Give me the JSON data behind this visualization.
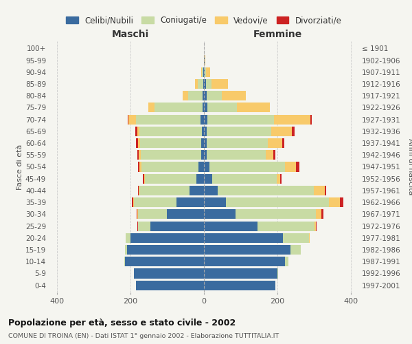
{
  "age_groups": [
    "0-4",
    "5-9",
    "10-14",
    "15-19",
    "20-24",
    "25-29",
    "30-34",
    "35-39",
    "40-44",
    "45-49",
    "50-54",
    "55-59",
    "60-64",
    "65-69",
    "70-74",
    "75-79",
    "80-84",
    "85-89",
    "90-94",
    "95-99",
    "100+"
  ],
  "birth_years": [
    "1997-2001",
    "1992-1996",
    "1987-1991",
    "1982-1986",
    "1977-1981",
    "1972-1976",
    "1967-1971",
    "1962-1966",
    "1957-1961",
    "1952-1956",
    "1947-1951",
    "1942-1946",
    "1937-1941",
    "1932-1936",
    "1927-1931",
    "1922-1926",
    "1917-1921",
    "1912-1916",
    "1907-1911",
    "1902-1906",
    "≤ 1901"
  ],
  "male": {
    "celibe": [
      185,
      190,
      215,
      210,
      200,
      145,
      100,
      75,
      40,
      20,
      15,
      7,
      8,
      6,
      10,
      4,
      3,
      2,
      1,
      0,
      0
    ],
    "coniugato": [
      0,
      0,
      2,
      5,
      12,
      35,
      80,
      115,
      135,
      140,
      155,
      165,
      165,
      170,
      175,
      130,
      40,
      15,
      4,
      0,
      0
    ],
    "vedovo": [
      0,
      0,
      0,
      0,
      0,
      0,
      1,
      2,
      2,
      3,
      5,
      5,
      6,
      6,
      20,
      18,
      15,
      8,
      2,
      0,
      0
    ],
    "divorziato": [
      0,
      0,
      0,
      0,
      0,
      1,
      2,
      4,
      3,
      4,
      5,
      5,
      5,
      5,
      2,
      0,
      0,
      0,
      0,
      0,
      0
    ]
  },
  "female": {
    "nubile": [
      195,
      200,
      220,
      235,
      215,
      145,
      85,
      60,
      38,
      22,
      15,
      8,
      8,
      8,
      10,
      10,
      8,
      5,
      2,
      1,
      0
    ],
    "coniugata": [
      0,
      2,
      10,
      28,
      70,
      155,
      220,
      280,
      260,
      175,
      205,
      160,
      165,
      175,
      180,
      80,
      40,
      15,
      3,
      0,
      0
    ],
    "vedova": [
      0,
      0,
      0,
      0,
      2,
      5,
      15,
      30,
      30,
      10,
      30,
      20,
      40,
      55,
      100,
      90,
      65,
      45,
      12,
      2,
      0
    ],
    "divorziata": [
      0,
      0,
      0,
      0,
      0,
      2,
      5,
      8,
      4,
      4,
      10,
      6,
      6,
      8,
      3,
      0,
      0,
      0,
      0,
      0,
      0
    ]
  },
  "colors": {
    "celibe": "#3a6b9f",
    "coniugato": "#c8dba4",
    "vedovo": "#f8ca6a",
    "divorziato": "#cc2222"
  },
  "xlim": 420,
  "title": "Popolazione per età, sesso e stato civile - 2002",
  "subtitle": "COMUNE DI TROINA (EN) - Dati ISTAT 1° gennaio 2002 - Elaborazione TUTTITALIA.IT",
  "ylabel_left": "Fasce di età",
  "ylabel_right": "Anni di nascita",
  "xlabel_maschi": "Maschi",
  "xlabel_femmine": "Femmine",
  "bg_color": "#f5f5f0",
  "legend_labels": [
    "Celibi/Nubili",
    "Coniugati/e",
    "Vedovi/e",
    "Divorziati/e"
  ]
}
